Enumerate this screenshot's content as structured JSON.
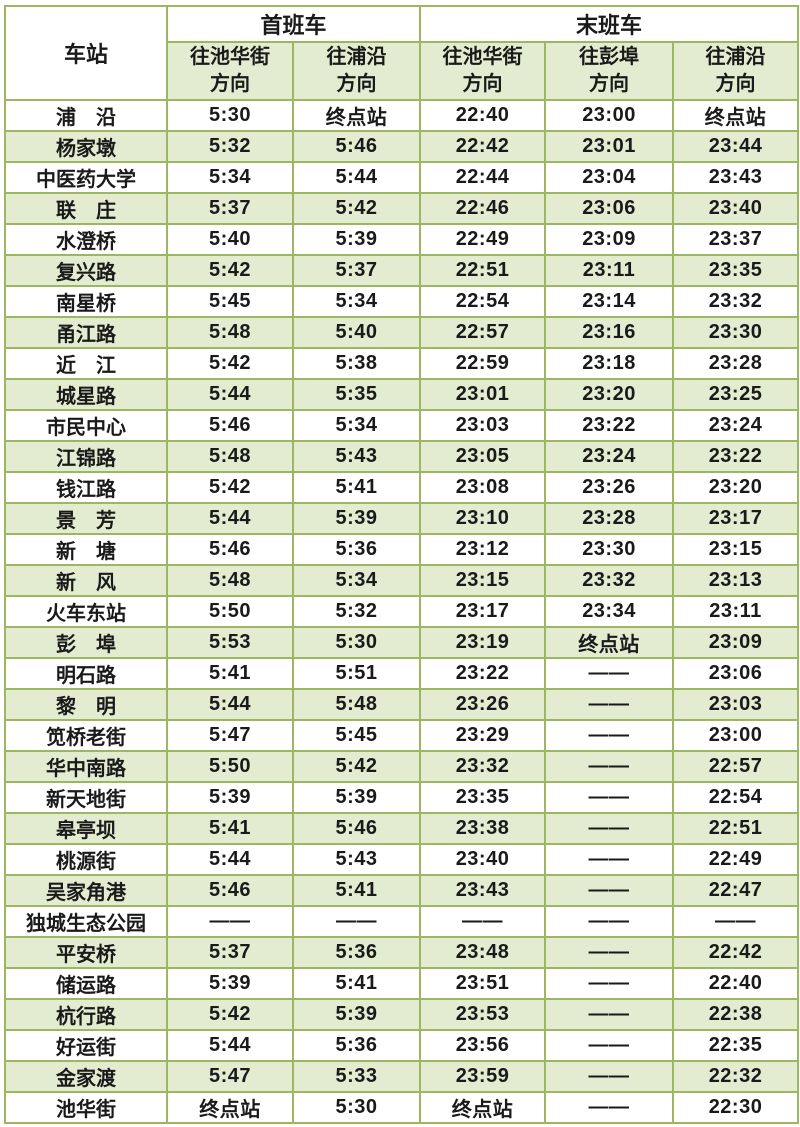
{
  "table": {
    "header": {
      "station_col": "车站",
      "first_train": "首班车",
      "last_train": "末班车",
      "directions": [
        "往池华街\n方向",
        "往浦沿\n方向",
        "往池华街\n方向",
        "往彭埠\n方向",
        "往浦沿\n方向"
      ]
    },
    "terminus_label": "终点站",
    "no_service_label": "——",
    "colors": {
      "border_green": "#9cb75f",
      "row_green": "#e3ecd1",
      "row_white": "#ffffff",
      "text": "#1a1a1a"
    },
    "rows": [
      {
        "station": "浦　沿",
        "times": [
          "5:30",
          "终点站",
          "22:40",
          "23:00",
          "终点站"
        ]
      },
      {
        "station": "杨家墩",
        "times": [
          "5:32",
          "5:46",
          "22:42",
          "23:01",
          "23:44"
        ]
      },
      {
        "station": "中医药大学",
        "times": [
          "5:34",
          "5:44",
          "22:44",
          "23:04",
          "23:43"
        ]
      },
      {
        "station": "联　庄",
        "times": [
          "5:37",
          "5:42",
          "22:46",
          "23:06",
          "23:40"
        ]
      },
      {
        "station": "水澄桥",
        "times": [
          "5:40",
          "5:39",
          "22:49",
          "23:09",
          "23:37"
        ]
      },
      {
        "station": "复兴路",
        "times": [
          "5:42",
          "5:37",
          "22:51",
          "23:11",
          "23:35"
        ]
      },
      {
        "station": "南星桥",
        "times": [
          "5:45",
          "5:34",
          "22:54",
          "23:14",
          "23:32"
        ]
      },
      {
        "station": "甬江路",
        "times": [
          "5:48",
          "5:40",
          "22:57",
          "23:16",
          "23:30"
        ]
      },
      {
        "station": "近　江",
        "times": [
          "5:42",
          "5:38",
          "22:59",
          "23:18",
          "23:28"
        ]
      },
      {
        "station": "城星路",
        "times": [
          "5:44",
          "5:35",
          "23:01",
          "23:20",
          "23:25"
        ]
      },
      {
        "station": "市民中心",
        "times": [
          "5:46",
          "5:34",
          "23:03",
          "23:22",
          "23:24"
        ]
      },
      {
        "station": "江锦路",
        "times": [
          "5:48",
          "5:43",
          "23:05",
          "23:24",
          "23:22"
        ]
      },
      {
        "station": "钱江路",
        "times": [
          "5:42",
          "5:41",
          "23:08",
          "23:26",
          "23:20"
        ]
      },
      {
        "station": "景　芳",
        "times": [
          "5:44",
          "5:39",
          "23:10",
          "23:28",
          "23:17"
        ]
      },
      {
        "station": "新　塘",
        "times": [
          "5:46",
          "5:36",
          "23:12",
          "23:30",
          "23:15"
        ]
      },
      {
        "station": "新　风",
        "times": [
          "5:48",
          "5:34",
          "23:15",
          "23:32",
          "23:13"
        ]
      },
      {
        "station": "火车东站",
        "times": [
          "5:50",
          "5:32",
          "23:17",
          "23:34",
          "23:11"
        ]
      },
      {
        "station": "彭　埠",
        "times": [
          "5:53",
          "5:30",
          "23:19",
          "终点站",
          "23:09"
        ]
      },
      {
        "station": "明石路",
        "times": [
          "5:41",
          "5:51",
          "23:22",
          "——",
          "23:06"
        ]
      },
      {
        "station": "黎　明",
        "times": [
          "5:44",
          "5:48",
          "23:26",
          "——",
          "23:03"
        ]
      },
      {
        "station": "笕桥老街",
        "times": [
          "5:47",
          "5:45",
          "23:29",
          "——",
          "23:00"
        ]
      },
      {
        "station": "华中南路",
        "times": [
          "5:50",
          "5:42",
          "23:32",
          "——",
          "22:57"
        ]
      },
      {
        "station": "新天地街",
        "times": [
          "5:39",
          "5:39",
          "23:35",
          "——",
          "22:54"
        ]
      },
      {
        "station": "皋亭坝",
        "times": [
          "5:41",
          "5:46",
          "23:38",
          "——",
          "22:51"
        ]
      },
      {
        "station": "桃源街",
        "times": [
          "5:44",
          "5:43",
          "23:40",
          "——",
          "22:49"
        ]
      },
      {
        "station": "吴家角港",
        "times": [
          "5:46",
          "5:41",
          "23:43",
          "——",
          "22:47"
        ]
      },
      {
        "station": "独城生态公园",
        "times": [
          "——",
          "——",
          "——",
          "——",
          "——"
        ]
      },
      {
        "station": "平安桥",
        "times": [
          "5:37",
          "5:36",
          "23:48",
          "——",
          "22:42"
        ]
      },
      {
        "station": "储运路",
        "times": [
          "5:39",
          "5:41",
          "23:51",
          "——",
          "22:40"
        ]
      },
      {
        "station": "杭行路",
        "times": [
          "5:42",
          "5:39",
          "23:53",
          "——",
          "22:38"
        ]
      },
      {
        "station": "好运街",
        "times": [
          "5:44",
          "5:36",
          "23:56",
          "——",
          "22:35"
        ]
      },
      {
        "station": "金家渡",
        "times": [
          "5:47",
          "5:33",
          "23:59",
          "——",
          "22:32"
        ]
      },
      {
        "station": "池华街",
        "times": [
          "终点站",
          "5:30",
          "终点站",
          "——",
          "22:30"
        ]
      }
    ]
  }
}
